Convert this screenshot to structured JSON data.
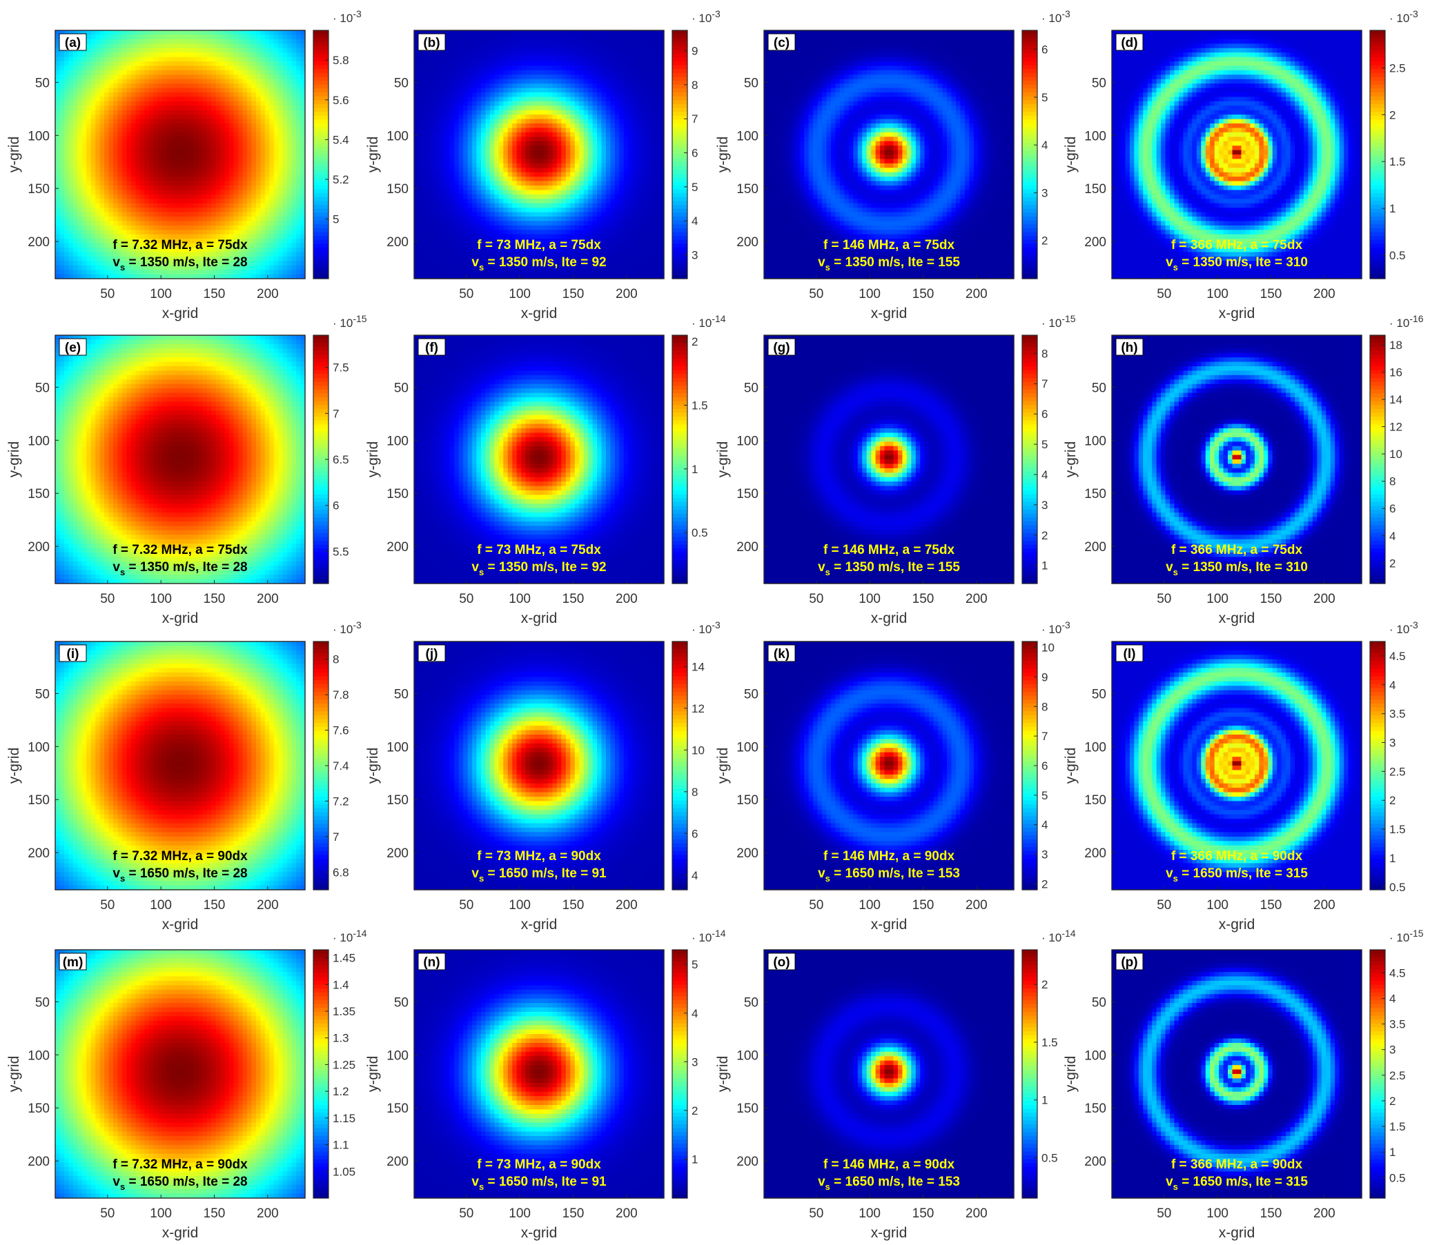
{
  "figure": {
    "colormap_name": "jet",
    "colormap_stops": [
      "#00008f",
      "#0000ff",
      "#0080ff",
      "#00ffff",
      "#80ff80",
      "#ffff00",
      "#ff8000",
      "#ff0000",
      "#800000"
    ],
    "annotation_colors": {
      "dark": "#000000",
      "light": "#ffff00"
    },
    "tag_box_color": "#ffffff"
  },
  "chart_data": [
    {
      "panel": "(a)",
      "type": "heatmap",
      "pattern": "wide",
      "xlabel": "x-grid",
      "ylabel": "y-grid",
      "xticks": [
        "50",
        "100",
        "150",
        "200"
      ],
      "yticks": [
        "50",
        "100",
        "150",
        "200"
      ],
      "xlim": [
        1,
        235
      ],
      "ylim": [
        1,
        235
      ],
      "colorbar": {
        "exponent": "10",
        "exponent_power": "-3",
        "ticks": [
          "5",
          "5.2",
          "5.4",
          "5.6",
          "5.8"
        ],
        "range": [
          4.7,
          5.95
        ]
      },
      "annotation": {
        "line1": "f = 7.32 MHz, a = 75dx",
        "vs_prefix": "v",
        "vs_sub": "s",
        "line2": " = 1350 m/s,  Ite = 28",
        "color": "dark"
      }
    },
    {
      "panel": "(b)",
      "type": "heatmap",
      "pattern": "gauss",
      "xlabel": "x-grid",
      "ylabel": "y-grid",
      "xticks": [
        "50",
        "100",
        "150",
        "200"
      ],
      "yticks": [
        "50",
        "100",
        "150",
        "200"
      ],
      "xlim": [
        1,
        235
      ],
      "ylim": [
        1,
        235
      ],
      "colorbar": {
        "exponent": "10",
        "exponent_power": "-3",
        "ticks": [
          "3",
          "4",
          "5",
          "6",
          "7",
          "8",
          "9"
        ],
        "range": [
          2.3,
          9.6
        ]
      },
      "annotation": {
        "line1": "f = 73 MHz, a = 75dx",
        "vs_prefix": "v",
        "vs_sub": "s",
        "line2": " = 1350 m/s,  Ite = 92",
        "color": "light"
      }
    },
    {
      "panel": "(c)",
      "type": "heatmap",
      "pattern": "ring1",
      "xlabel": "x-grid",
      "ylabel": "y-grid",
      "xticks": [
        "50",
        "100",
        "150",
        "200"
      ],
      "yticks": [
        "50",
        "100",
        "150",
        "200"
      ],
      "xlim": [
        1,
        235
      ],
      "ylim": [
        1,
        235
      ],
      "colorbar": {
        "exponent": "10",
        "exponent_power": "-3",
        "ticks": [
          "2",
          "3",
          "4",
          "5",
          "6"
        ],
        "range": [
          1.2,
          6.4
        ]
      },
      "annotation": {
        "line1": "f = 146 MHz, a = 75dx",
        "vs_prefix": "v",
        "vs_sub": "s",
        "line2": " = 1350 m/s,  Ite = 155",
        "color": "light"
      }
    },
    {
      "panel": "(d)",
      "type": "heatmap",
      "pattern": "multi_l",
      "xlabel": "x-grid",
      "ylabel": "y-grid",
      "xticks": [
        "50",
        "100",
        "150",
        "200"
      ],
      "yticks": [
        "50",
        "100",
        "150",
        "200"
      ],
      "xlim": [
        1,
        235
      ],
      "ylim": [
        1,
        235
      ],
      "colorbar": {
        "exponent": "10",
        "exponent_power": "-3",
        "ticks": [
          "0.5",
          "1",
          "1.5",
          "2",
          "2.5"
        ],
        "range": [
          0.25,
          2.9
        ]
      },
      "annotation": {
        "line1": "f = 366 MHz, a = 75dx",
        "vs_prefix": "v",
        "vs_sub": "s",
        "line2": " = 1350 m/s,  Ite = 310",
        "color": "light"
      }
    },
    {
      "panel": "(e)",
      "type": "heatmap",
      "pattern": "wide",
      "xlabel": "x-grid",
      "ylabel": "y-grid",
      "xticks": [
        "50",
        "100",
        "150",
        "200"
      ],
      "yticks": [
        "50",
        "100",
        "150",
        "200"
      ],
      "xlim": [
        1,
        235
      ],
      "ylim": [
        1,
        235
      ],
      "colorbar": {
        "exponent": "10",
        "exponent_power": "-15",
        "ticks": [
          "5.5",
          "6",
          "6.5",
          "7",
          "7.5"
        ],
        "range": [
          5.15,
          7.85
        ]
      },
      "annotation": {
        "line1": "f = 7.32 MHz, a = 75dx",
        "vs_prefix": "v",
        "vs_sub": "s",
        "line2": " = 1350 m/s,  Ite = 28",
        "color": "dark"
      }
    },
    {
      "panel": "(f)",
      "type": "heatmap",
      "pattern": "gauss",
      "xlabel": "x-grid",
      "ylabel": "y-grid",
      "xticks": [
        "50",
        "100",
        "150",
        "200"
      ],
      "yticks": [
        "50",
        "100",
        "150",
        "200"
      ],
      "xlim": [
        1,
        235
      ],
      "ylim": [
        1,
        235
      ],
      "colorbar": {
        "exponent": "10",
        "exponent_power": "-14",
        "ticks": [
          "0.5",
          "1",
          "1.5",
          "2"
        ],
        "range": [
          0.1,
          2.05
        ]
      },
      "annotation": {
        "line1": "f = 73 MHz, a = 75dx",
        "vs_prefix": "v",
        "vs_sub": "s",
        "line2": " = 1350 m/s,  Ite = 92",
        "color": "light"
      }
    },
    {
      "panel": "(g)",
      "type": "heatmap",
      "pattern": "ring1_w",
      "xlabel": "x-grid",
      "ylabel": "y-grid",
      "xticks": [
        "50",
        "100",
        "150",
        "200"
      ],
      "yticks": [
        "50",
        "100",
        "150",
        "200"
      ],
      "xlim": [
        1,
        235
      ],
      "ylim": [
        1,
        235
      ],
      "colorbar": {
        "exponent": "10",
        "exponent_power": "-15",
        "ticks": [
          "1",
          "2",
          "3",
          "4",
          "5",
          "6",
          "7",
          "8"
        ],
        "range": [
          0.4,
          8.6
        ]
      },
      "annotation": {
        "line1": "f = 146 MHz, a = 75dx",
        "vs_prefix": "v",
        "vs_sub": "s",
        "line2": " = 1350 m/s,  Ite = 155",
        "color": "light"
      }
    },
    {
      "panel": "(h)",
      "type": "heatmap",
      "pattern": "multi_w",
      "xlabel": "x-grid",
      "ylabel": "y-grid",
      "xticks": [
        "50",
        "100",
        "150",
        "200"
      ],
      "yticks": [
        "50",
        "100",
        "150",
        "200"
      ],
      "xlim": [
        1,
        235
      ],
      "ylim": [
        1,
        235
      ],
      "colorbar": {
        "exponent": "10",
        "exponent_power": "-16",
        "ticks": [
          "2",
          "4",
          "6",
          "8",
          "10",
          "12",
          "14",
          "16",
          "18"
        ],
        "range": [
          0.5,
          18.7
        ]
      },
      "annotation": {
        "line1": "f = 366 MHz, a = 75dx",
        "vs_prefix": "v",
        "vs_sub": "s",
        "line2": " = 1350 m/s,  Ite = 310",
        "color": "light"
      }
    },
    {
      "panel": "(i)",
      "type": "heatmap",
      "pattern": "wide",
      "xlabel": "x-grid",
      "ylabel": "y-grid",
      "xticks": [
        "50",
        "100",
        "150",
        "200"
      ],
      "yticks": [
        "50",
        "100",
        "150",
        "200"
      ],
      "xlim": [
        1,
        235
      ],
      "ylim": [
        1,
        235
      ],
      "colorbar": {
        "exponent": "10",
        "exponent_power": "-3",
        "ticks": [
          "6.8",
          "7",
          "7.2",
          "7.4",
          "7.6",
          "7.8",
          "8"
        ],
        "range": [
          6.7,
          8.1
        ]
      },
      "annotation": {
        "line1": "f = 7.32 MHz, a = 90dx",
        "vs_prefix": "v",
        "vs_sub": "s",
        "line2": " = 1650 m/s,  Ite = 28",
        "color": "dark"
      }
    },
    {
      "panel": "(j)",
      "type": "heatmap",
      "pattern": "gauss",
      "xlabel": "x-grid",
      "ylabel": "y-grid",
      "xticks": [
        "50",
        "100",
        "150",
        "200"
      ],
      "yticks": [
        "50",
        "100",
        "150",
        "200"
      ],
      "xlim": [
        1,
        235
      ],
      "ylim": [
        1,
        235
      ],
      "colorbar": {
        "exponent": "10",
        "exponent_power": "-3",
        "ticks": [
          "4",
          "6",
          "8",
          "10",
          "12",
          "14"
        ],
        "range": [
          3.3,
          15.2
        ]
      },
      "annotation": {
        "line1": "f = 73 MHz, a = 90dx",
        "vs_prefix": "v",
        "vs_sub": "s",
        "line2": " = 1650 m/s,  Ite = 91",
        "color": "light"
      }
    },
    {
      "panel": "(k)",
      "type": "heatmap",
      "pattern": "ring1",
      "xlabel": "x-grid",
      "ylabel": "y-grid",
      "xticks": [
        "50",
        "100",
        "150",
        "200"
      ],
      "yticks": [
        "50",
        "100",
        "150",
        "200"
      ],
      "xlim": [
        1,
        235
      ],
      "ylim": [
        1,
        235
      ],
      "colorbar": {
        "exponent": "10",
        "exponent_power": "-3",
        "ticks": [
          "2",
          "3",
          "4",
          "5",
          "6",
          "7",
          "8",
          "9",
          "10"
        ],
        "range": [
          1.8,
          10.2
        ]
      },
      "annotation": {
        "line1": "f = 146 MHz, a = 90dx",
        "vs_prefix": "v",
        "vs_sub": "s",
        "line2": " = 1650 m/s,  Ite = 153",
        "color": "light"
      }
    },
    {
      "panel": "(l)",
      "type": "heatmap",
      "pattern": "multi_l",
      "xlabel": "x-grid",
      "ylabel": "y-grid",
      "xticks": [
        "50",
        "100",
        "150",
        "200"
      ],
      "yticks": [
        "50",
        "100",
        "150",
        "200"
      ],
      "xlim": [
        1,
        235
      ],
      "ylim": [
        1,
        235
      ],
      "colorbar": {
        "exponent": "10",
        "exponent_power": "-3",
        "ticks": [
          "0.5",
          "1",
          "1.5",
          "2",
          "2.5",
          "3",
          "3.5",
          "4",
          "4.5"
        ],
        "range": [
          0.45,
          4.75
        ]
      },
      "annotation": {
        "line1": "f = 366 MHz, a = 90dx",
        "vs_prefix": "v",
        "vs_sub": "s",
        "line2": " = 1650 m/s,  Ite = 315",
        "color": "light"
      }
    },
    {
      "panel": "(m)",
      "type": "heatmap",
      "pattern": "wide",
      "xlabel": "x-grid",
      "ylabel": "y-grid",
      "xticks": [
        "50",
        "100",
        "150",
        "200"
      ],
      "yticks": [
        "50",
        "100",
        "150",
        "200"
      ],
      "xlim": [
        1,
        235
      ],
      "ylim": [
        1,
        235
      ],
      "colorbar": {
        "exponent": "10",
        "exponent_power": "-14",
        "ticks": [
          "1.05",
          "1.1",
          "1.15",
          "1.2",
          "1.25",
          "1.3",
          "1.35",
          "1.4",
          "1.45"
        ],
        "range": [
          1.0,
          1.465
        ]
      },
      "annotation": {
        "line1": "f = 7.32 MHz, a = 90dx",
        "vs_prefix": "v",
        "vs_sub": "s",
        "line2": " = 1650 m/s,  Ite = 28",
        "color": "dark"
      }
    },
    {
      "panel": "(n)",
      "type": "heatmap",
      "pattern": "gauss",
      "xlabel": "x-grid",
      "ylabel": "y-grid",
      "xticks": [
        "50",
        "100",
        "150",
        "200"
      ],
      "yticks": [
        "50",
        "100",
        "150",
        "200"
      ],
      "xlim": [
        1,
        235
      ],
      "ylim": [
        1,
        235
      ],
      "colorbar": {
        "exponent": "10",
        "exponent_power": "-14",
        "ticks": [
          "1",
          "2",
          "3",
          "4",
          "5"
        ],
        "range": [
          0.2,
          5.3
        ]
      },
      "annotation": {
        "line1": "f = 73 MHz, a = 90dx",
        "vs_prefix": "v",
        "vs_sub": "s",
        "line2": " = 1650 m/s,  Ite = 91",
        "color": "light"
      }
    },
    {
      "panel": "(o)",
      "type": "heatmap",
      "pattern": "ring1_w",
      "xlabel": "x-grid",
      "ylabel": "y-grid",
      "xticks": [
        "50",
        "100",
        "150",
        "200"
      ],
      "yticks": [
        "50",
        "100",
        "150",
        "200"
      ],
      "xlim": [
        1,
        235
      ],
      "ylim": [
        1,
        235
      ],
      "colorbar": {
        "exponent": "10",
        "exponent_power": "-14",
        "ticks": [
          "0.5",
          "1",
          "1.5",
          "2"
        ],
        "range": [
          0.15,
          2.3
        ]
      },
      "annotation": {
        "line1": "f = 146 MHz, a = 90dx",
        "vs_prefix": "v",
        "vs_sub": "s",
        "line2": " = 1650 m/s,  Ite = 153",
        "color": "light"
      }
    },
    {
      "panel": "(p)",
      "type": "heatmap",
      "pattern": "multi_w",
      "xlabel": "x-grid",
      "ylabel": "y-grid",
      "xticks": [
        "50",
        "100",
        "150",
        "200"
      ],
      "yticks": [
        "50",
        "100",
        "150",
        "200"
      ],
      "xlim": [
        1,
        235
      ],
      "ylim": [
        1,
        235
      ],
      "colorbar": {
        "exponent": "10",
        "exponent_power": "-15",
        "ticks": [
          "0.5",
          "1",
          "1.5",
          "2",
          "2.5",
          "3",
          "3.5",
          "4",
          "4.5"
        ],
        "range": [
          0.1,
          4.95
        ]
      },
      "annotation": {
        "line1": "f = 366 MHz, a = 90dx",
        "vs_prefix": "v",
        "vs_sub": "s",
        "line2": " = 1650 m/s,  Ite = 315",
        "color": "light"
      }
    }
  ]
}
